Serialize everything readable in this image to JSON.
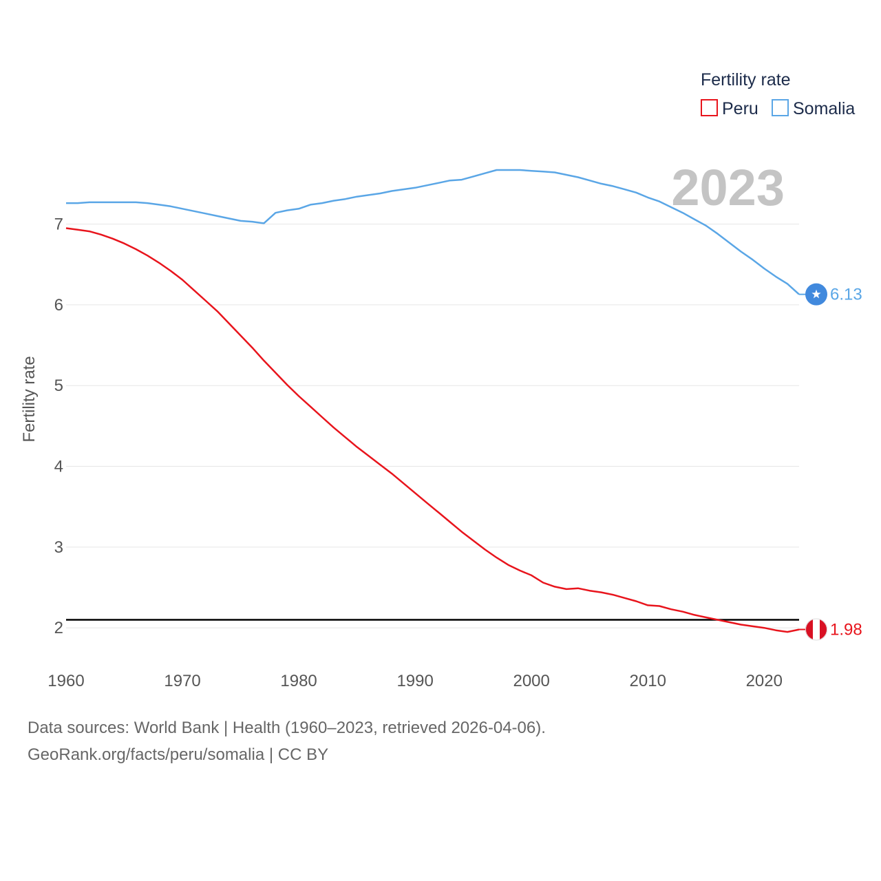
{
  "chart_data": {
    "type": "line",
    "title": "",
    "xlabel": "",
    "ylabel": "Fertility rate",
    "xlim": [
      1960,
      2023
    ],
    "ylim": [
      1.55,
      7.9
    ],
    "x_ticks": [
      1960,
      1970,
      1980,
      1990,
      2000,
      2010,
      2020
    ],
    "y_ticks": [
      2,
      3,
      4,
      5,
      6,
      7
    ],
    "current_year": "2023",
    "legend": {
      "title": "Fertility rate",
      "placement": "top-right"
    },
    "reference_line": {
      "value": 2.1,
      "color": "#000000"
    },
    "x": [
      1960,
      1961,
      1962,
      1963,
      1964,
      1965,
      1966,
      1967,
      1968,
      1969,
      1970,
      1971,
      1972,
      1973,
      1974,
      1975,
      1976,
      1977,
      1978,
      1979,
      1980,
      1981,
      1982,
      1983,
      1984,
      1985,
      1986,
      1987,
      1988,
      1989,
      1990,
      1991,
      1992,
      1993,
      1994,
      1995,
      1996,
      1997,
      1998,
      1999,
      2000,
      2001,
      2002,
      2003,
      2004,
      2005,
      2006,
      2007,
      2008,
      2009,
      2010,
      2011,
      2012,
      2013,
      2014,
      2015,
      2016,
      2017,
      2018,
      2019,
      2020,
      2021,
      2022,
      2023
    ],
    "series": [
      {
        "name": "Peru",
        "color": "#e8141c",
        "end_label": "1.98",
        "values": [
          6.95,
          6.93,
          6.91,
          6.87,
          6.82,
          6.76,
          6.69,
          6.61,
          6.52,
          6.42,
          6.31,
          6.18,
          6.05,
          5.92,
          5.77,
          5.62,
          5.47,
          5.31,
          5.16,
          5.01,
          4.87,
          4.74,
          4.61,
          4.48,
          4.36,
          4.24,
          4.13,
          4.02,
          3.91,
          3.79,
          3.67,
          3.55,
          3.43,
          3.31,
          3.19,
          3.08,
          2.97,
          2.87,
          2.78,
          2.71,
          2.65,
          2.56,
          2.51,
          2.48,
          2.49,
          2.46,
          2.44,
          2.41,
          2.37,
          2.33,
          2.28,
          2.27,
          2.23,
          2.2,
          2.16,
          2.13,
          2.1,
          2.07,
          2.04,
          2.02,
          2.0,
          1.97,
          1.95,
          1.98
        ]
      },
      {
        "name": "Somalia",
        "color": "#5aa6e6",
        "end_label": "6.13",
        "values": [
          7.26,
          7.26,
          7.27,
          7.27,
          7.27,
          7.27,
          7.27,
          7.26,
          7.24,
          7.22,
          7.19,
          7.16,
          7.13,
          7.1,
          7.07,
          7.04,
          7.03,
          7.01,
          7.14,
          7.17,
          7.19,
          7.24,
          7.26,
          7.29,
          7.31,
          7.34,
          7.36,
          7.38,
          7.41,
          7.43,
          7.45,
          7.48,
          7.51,
          7.54,
          7.55,
          7.59,
          7.63,
          7.67,
          7.67,
          7.67,
          7.66,
          7.65,
          7.64,
          7.61,
          7.58,
          7.54,
          7.5,
          7.47,
          7.43,
          7.39,
          7.33,
          7.28,
          7.21,
          7.14,
          7.06,
          6.98,
          6.88,
          6.77,
          6.66,
          6.56,
          6.45,
          6.35,
          6.26,
          6.13
        ]
      }
    ]
  },
  "footer": {
    "line1": "Data sources: World Bank | Health (1960–2023, retrieved 2026-04-06).",
    "line2": "GeoRank.org/facts/peru/somalia | CC BY"
  }
}
